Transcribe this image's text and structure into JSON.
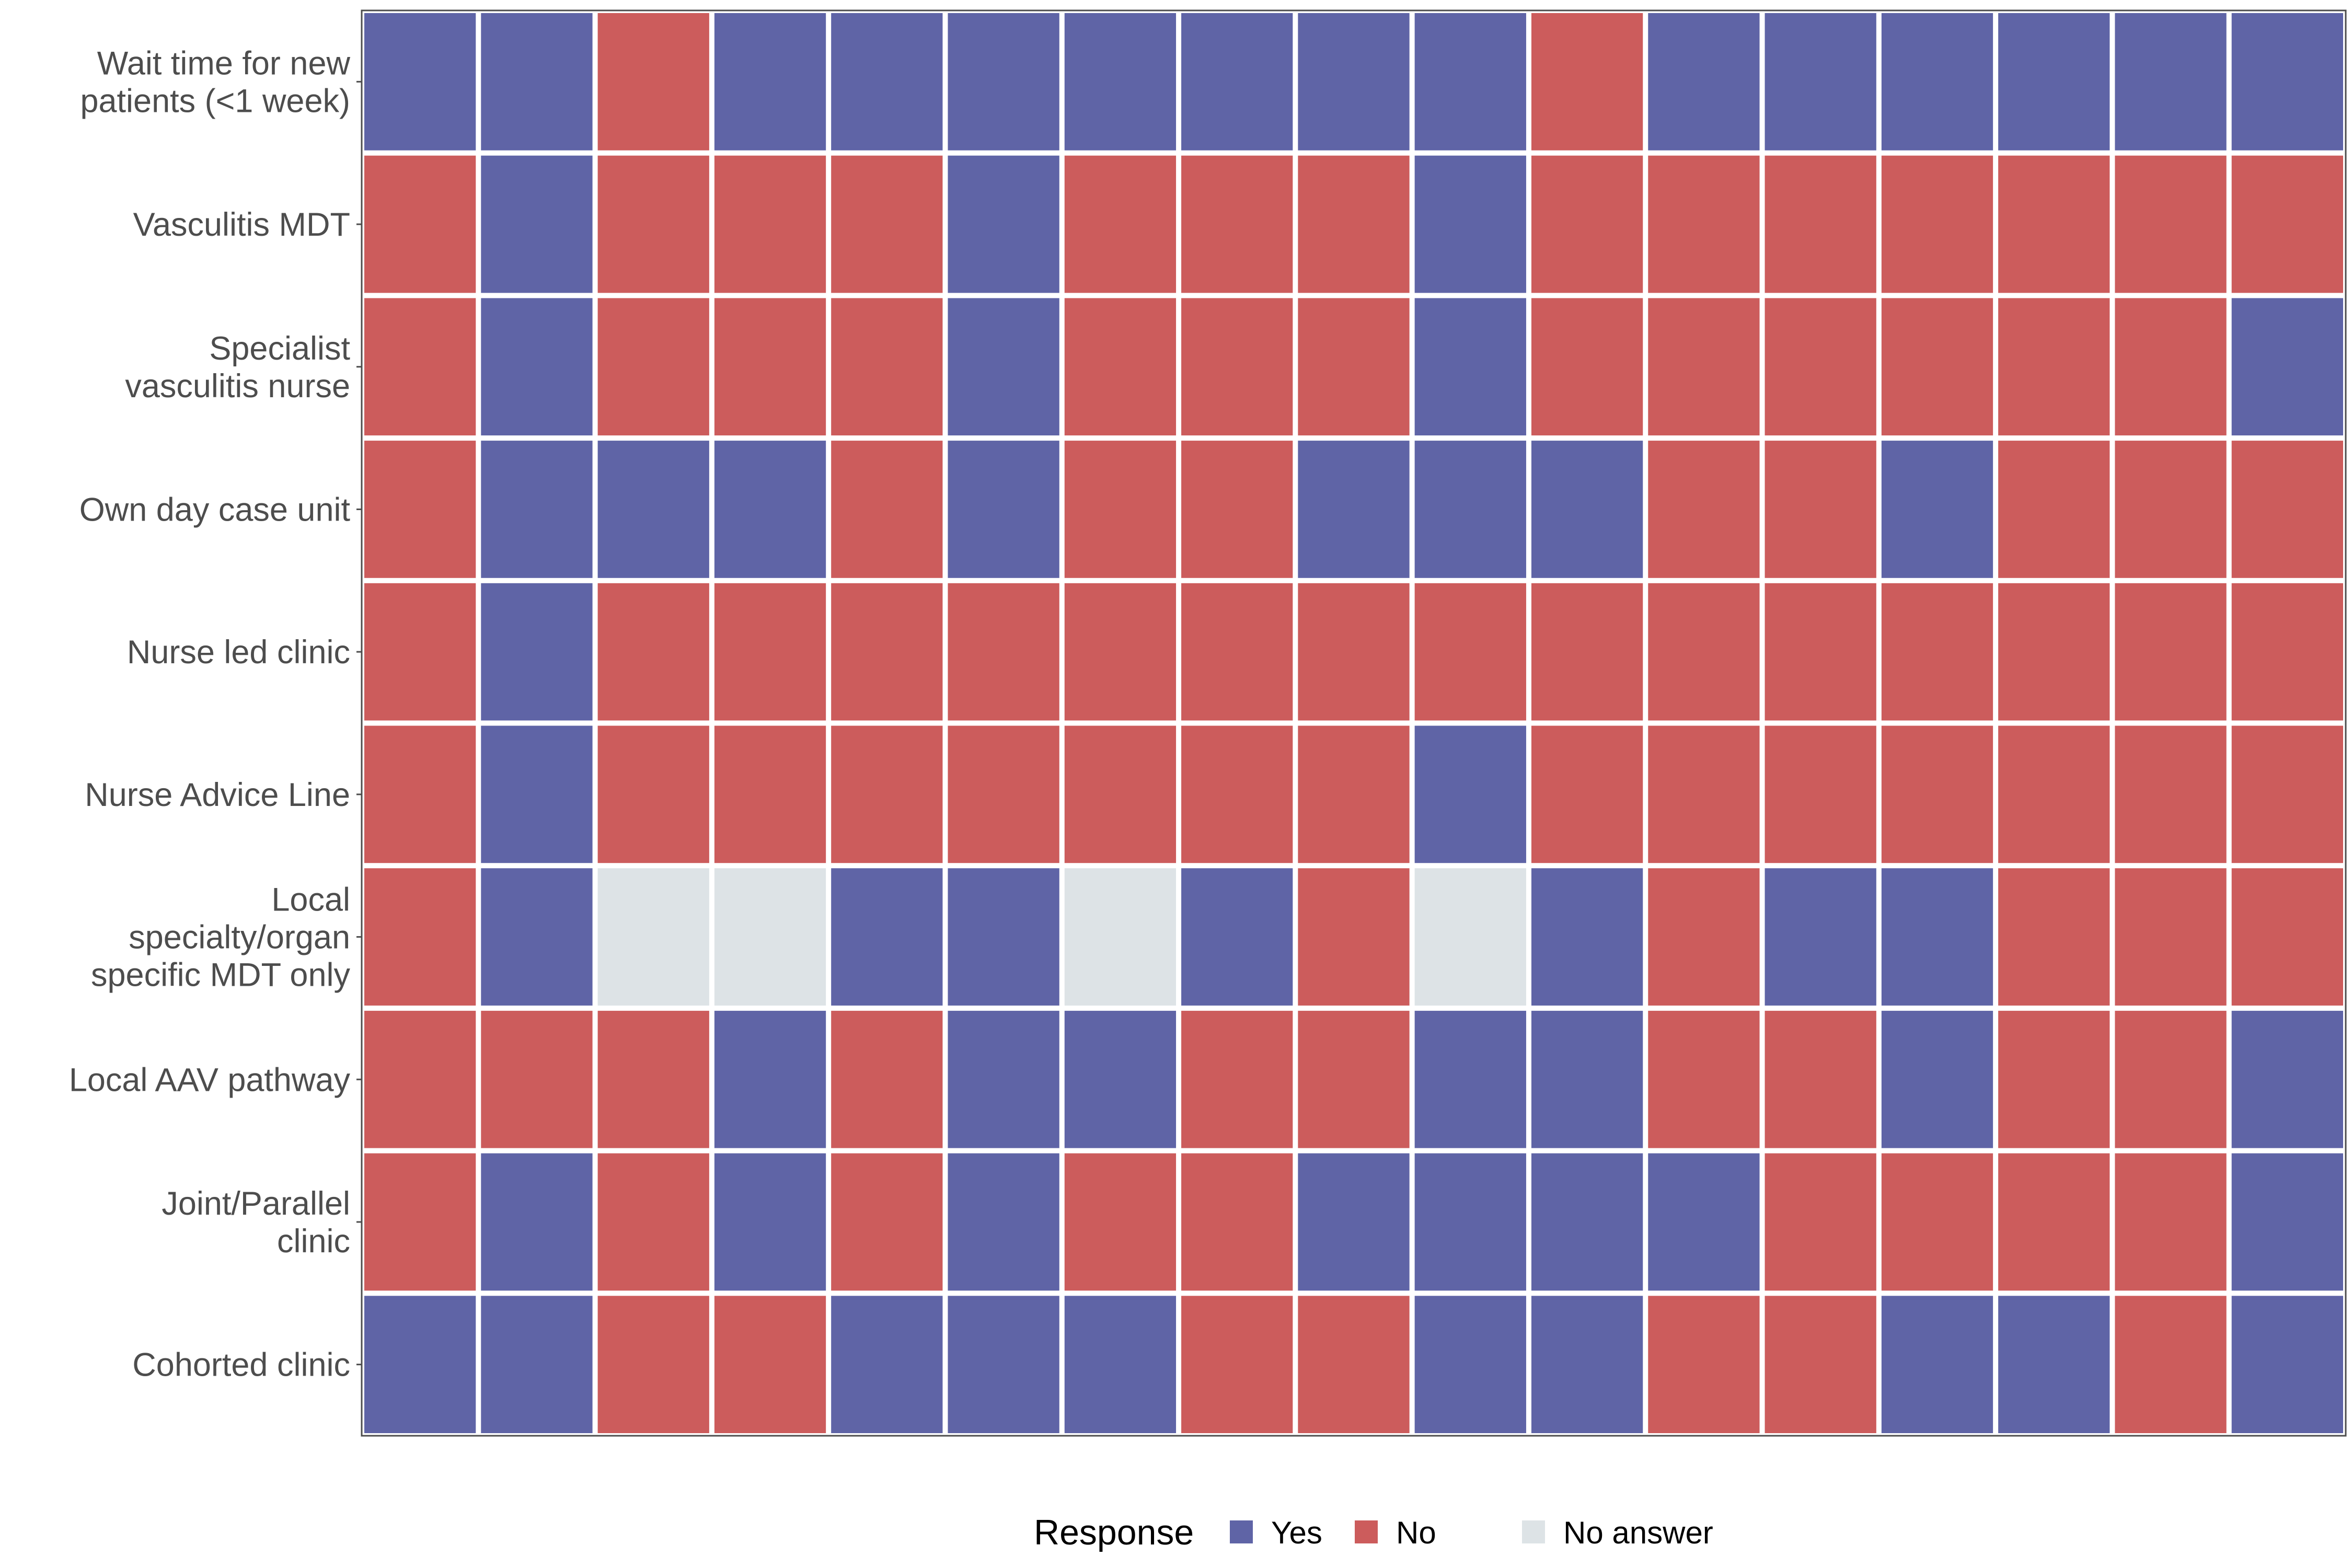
{
  "chart_data": {
    "type": "heatmap",
    "title": "",
    "xlabel": "",
    "ylabel": "",
    "rows": [
      {
        "label": [
          "Wait time for new",
          "patients (<1 week)"
        ],
        "values": [
          "Yes",
          "Yes",
          "No",
          "Yes",
          "Yes",
          "Yes",
          "Yes",
          "Yes",
          "Yes",
          "Yes",
          "No",
          "Yes",
          "Yes",
          "Yes",
          "Yes",
          "Yes",
          "Yes"
        ]
      },
      {
        "label": [
          "Vasculitis MDT"
        ],
        "values": [
          "No",
          "Yes",
          "No",
          "No",
          "No",
          "Yes",
          "No",
          "No",
          "No",
          "Yes",
          "No",
          "No",
          "No",
          "No",
          "No",
          "No",
          "No"
        ]
      },
      {
        "label": [
          "Specialist",
          "vasculitis nurse"
        ],
        "values": [
          "No",
          "Yes",
          "No",
          "No",
          "No",
          "Yes",
          "No",
          "No",
          "No",
          "Yes",
          "No",
          "No",
          "No",
          "No",
          "No",
          "No",
          "Yes"
        ]
      },
      {
        "label": [
          "Own day case unit"
        ],
        "values": [
          "No",
          "Yes",
          "Yes",
          "Yes",
          "No",
          "Yes",
          "No",
          "No",
          "Yes",
          "Yes",
          "Yes",
          "No",
          "No",
          "Yes",
          "No",
          "No",
          "No"
        ]
      },
      {
        "label": [
          "Nurse led clinic"
        ],
        "values": [
          "No",
          "Yes",
          "No",
          "No",
          "No",
          "No",
          "No",
          "No",
          "No",
          "No",
          "No",
          "No",
          "No",
          "No",
          "No",
          "No",
          "No"
        ]
      },
      {
        "label": [
          "Nurse Advice Line"
        ],
        "values": [
          "No",
          "Yes",
          "No",
          "No",
          "No",
          "No",
          "No",
          "No",
          "No",
          "Yes",
          "No",
          "No",
          "No",
          "No",
          "No",
          "No",
          "No"
        ]
      },
      {
        "label": [
          "Local",
          "specialty/organ",
          "specific MDT only"
        ],
        "values": [
          "No",
          "Yes",
          "No answer",
          "No answer",
          "Yes",
          "Yes",
          "No answer",
          "Yes",
          "No",
          "No answer",
          "Yes",
          "No",
          "Yes",
          "Yes",
          "No",
          "No",
          "No"
        ]
      },
      {
        "label": [
          "Local AAV pathway"
        ],
        "values": [
          "No",
          "No",
          "No",
          "Yes",
          "No",
          "Yes",
          "Yes",
          "No",
          "No",
          "Yes",
          "Yes",
          "No",
          "No",
          "Yes",
          "No",
          "No",
          "Yes"
        ]
      },
      {
        "label": [
          "Joint/Parallel",
          "clinic"
        ],
        "values": [
          "No",
          "Yes",
          "No",
          "Yes",
          "No",
          "Yes",
          "No",
          "No",
          "Yes",
          "Yes",
          "Yes",
          "Yes",
          "No",
          "No",
          "No",
          "No",
          "Yes"
        ]
      },
      {
        "label": [
          "Cohorted clinic"
        ],
        "values": [
          "Yes",
          "Yes",
          "No",
          "No",
          "Yes",
          "Yes",
          "Yes",
          "No",
          "No",
          "Yes",
          "Yes",
          "No",
          "No",
          "Yes",
          "Yes",
          "No",
          "Yes"
        ]
      }
    ],
    "legend": {
      "title": "Response",
      "position": "bottom",
      "items": [
        {
          "label": "Yes",
          "color": "#5f64a6"
        },
        {
          "label": "No",
          "color": "#cc5c5c"
        },
        {
          "label": "No answer",
          "color": "#dde3e6"
        }
      ]
    },
    "grid": false
  }
}
